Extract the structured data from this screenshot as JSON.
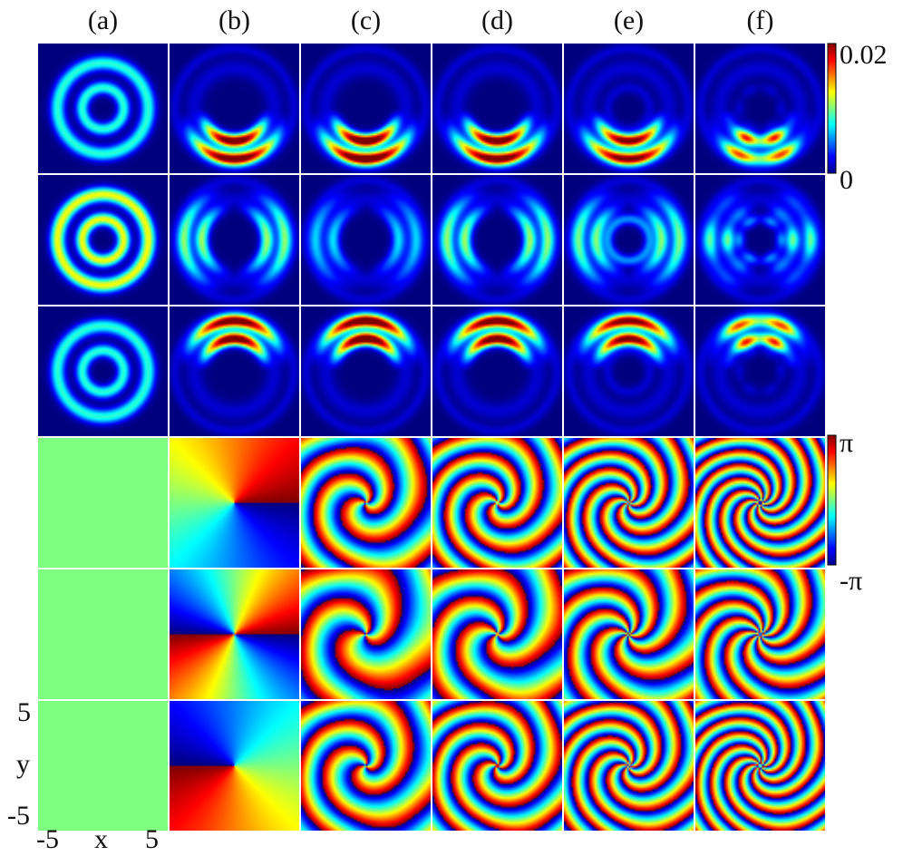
{
  "columns": [
    "(a)",
    "(b)",
    "(c)",
    "(d)",
    "(e)",
    "(f)"
  ],
  "colorbars": {
    "density": {
      "max_label": "0.02",
      "min_label": "0",
      "min": 0,
      "max": 0.02
    },
    "phase": {
      "max_label": "π",
      "min_label": "-π",
      "min": -3.1416,
      "max": 3.1416
    }
  },
  "axes": {
    "x_label": "x",
    "y_label": "y",
    "x_min_label": "-5",
    "x_max_label": "5",
    "y_min_label": "-5",
    "y_max_label": "5",
    "range": [
      -5,
      5
    ]
  },
  "colormap": "jet",
  "chart_data": {
    "type": "heatmap",
    "grid": {
      "rows": 6,
      "cols": 6
    },
    "row_kinds": [
      "density",
      "density",
      "density",
      "phase",
      "phase",
      "phase"
    ],
    "panels_note_values": "Density rows use colour scale 0 to 0.02; phase rows use colour scale -π to π."
  }
}
